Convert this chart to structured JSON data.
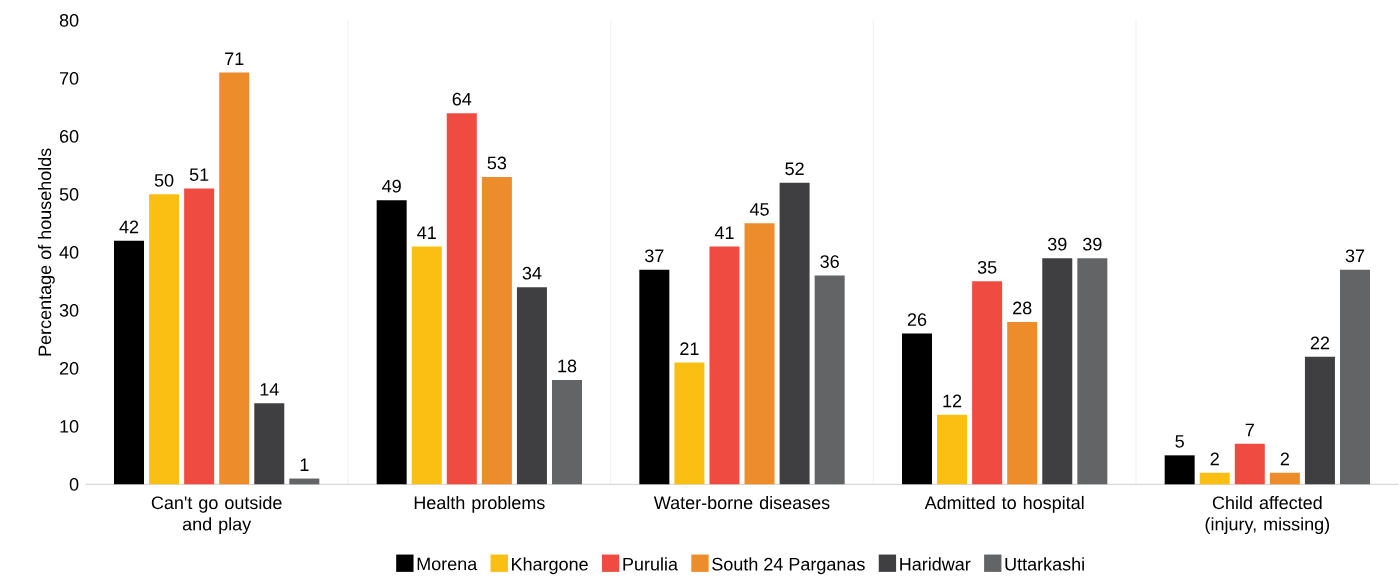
{
  "chart_data": {
    "type": "bar",
    "ylabel": "Percentage of households",
    "categories": [
      "Can't go outside and play",
      "Health problems",
      "Water-borne diseases",
      "Admitted to hospital",
      "Child affected (injury, missing)"
    ],
    "series": [
      {
        "name": "Morena",
        "color": "#000000",
        "values": [
          42,
          49,
          37,
          26,
          5
        ]
      },
      {
        "name": "Khargone",
        "color": "#fbbf14",
        "values": [
          50,
          41,
          21,
          12,
          2
        ]
      },
      {
        "name": "Purulia",
        "color": "#f04b40",
        "values": [
          51,
          64,
          41,
          35,
          7
        ]
      },
      {
        "name": "South 24 Parganas",
        "color": "#ec8c2a",
        "values": [
          71,
          53,
          45,
          28,
          2
        ]
      },
      {
        "name": "Haridwar",
        "color": "#3f3f41",
        "values": [
          14,
          34,
          52,
          39,
          22
        ]
      },
      {
        "name": "Uttarkashi",
        "color": "#636466",
        "values": [
          1,
          18,
          36,
          39,
          37
        ]
      }
    ],
    "ylim": [
      0,
      80
    ],
    "yticks": [
      0,
      10,
      20,
      30,
      40,
      50,
      60,
      70,
      80
    ],
    "data_labels": true,
    "grid": "x",
    "legend": "bottom"
  }
}
